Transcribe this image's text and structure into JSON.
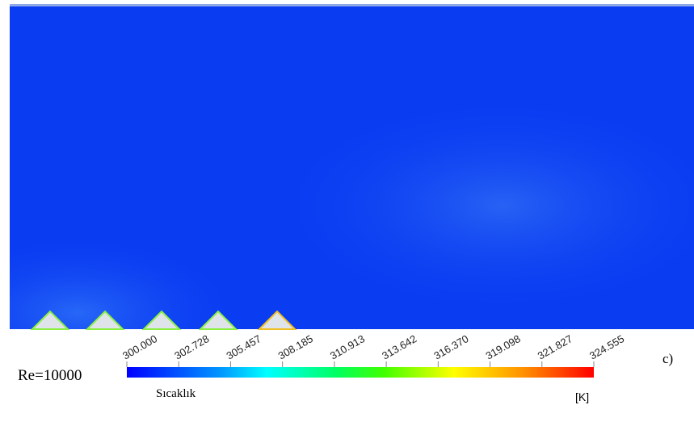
{
  "figure": {
    "label": "c)",
    "reynolds": "Re=10000",
    "legend": {
      "title": "Sıcaklık",
      "unit": "[K]",
      "ticks": [
        "300.000",
        "302.728",
        "305.457",
        "308.185",
        "310.913",
        "313.642",
        "316.370",
        "319.098",
        "321.827",
        "324.555"
      ]
    }
  }
}
